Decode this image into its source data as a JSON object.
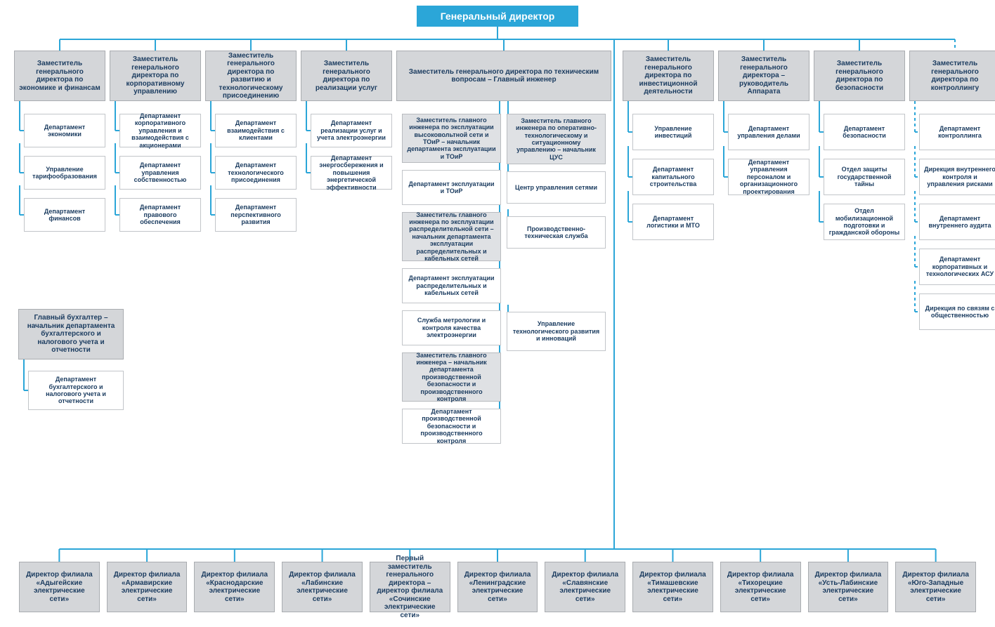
{
  "colors": {
    "root_bg": "#2ba6d8",
    "root_border": "#2ba6d8",
    "root_text": "#ffffff",
    "head_bg": "#d4d6d9",
    "head_border": "#a9acb0",
    "head_text": "#1a3b5f",
    "sub_bg": "#dfe1e4",
    "sub_border": "#b8bbbf",
    "sub_text": "#1a3b5f",
    "dept_bg": "#ffffff",
    "dept_border": "#c2c5c9",
    "dept_text": "#1a3b5f",
    "line": "#2ba6d8",
    "line_dotted": "#2ba6d8",
    "body_bg": "#ffffff"
  },
  "fontsize": {
    "root": 14,
    "head": 10,
    "dept": 9,
    "branch": 10
  },
  "line_width": 2,
  "root": {
    "label": "Генеральный директор"
  },
  "columns": [
    {
      "head": "Заместитель генерального директора по экономике и финансам",
      "depts": [
        "Департамент экономики",
        "Управление тарифообразования",
        "Департамент финансов"
      ]
    },
    {
      "head": "Заместитель генерального директора по корпоративному управлению",
      "depts": [
        "Департамент корпоративного управления и взаимодействия с акционерами",
        "Департамент управления собственностью",
        "Департамент правового обеспечения"
      ]
    },
    {
      "head": "Заместитель генерального директора по развитию и технологическому присоединению",
      "depts": [
        "Департамент взаимодействия с клиентами",
        "Департамент технологического присоединения",
        "Департамент перспективного развития"
      ]
    },
    {
      "head": "Заместитель генерального директора по реализации услуг",
      "depts": [
        "Департамент реализации услуг и учета электроэнергии",
        "Департамент энергосбережения и повышения энергетической эффективности"
      ]
    }
  ],
  "chief_engineer": {
    "head": "Заместитель генерального директора по техническим вопросам – Главный инженер",
    "left_col": [
      {
        "type": "sub",
        "label": "Заместитель главного инженера по эксплуатации высоковольтной сети и ТОиР – начальник департамента эксплуатации и ТОиР"
      },
      {
        "type": "dept",
        "label": "Департамент эксплуатации и ТОиР"
      },
      {
        "type": "sub",
        "label": "Заместитель главного инженера по эксплуатации распределительной сети – начальник департамента эксплуатации распределительных и кабельных сетей"
      },
      {
        "type": "dept",
        "label": "Департамент эксплуатации распределительных и кабельных сетей"
      },
      {
        "type": "dept",
        "label": "Служба метрологии и контроля качества электроэнергии"
      },
      {
        "type": "sub",
        "label": "Заместитель главного инженера – начальник департамента производственной безопасности и производственного контроля"
      },
      {
        "type": "dept",
        "label": "Департамент производственной безопасности и производственного контроля"
      }
    ],
    "right_col": [
      {
        "type": "sub",
        "label": "Заместитель главного инженера по оперативно-технологическому и ситуационному управлению – начальник ЦУС"
      },
      {
        "type": "dept",
        "label": "Центр управления сетями"
      },
      {
        "type": "dept",
        "label": "Производственно-техническая служба"
      },
      {
        "type": "dept",
        "label": "Управление технологического развития и инноваций"
      }
    ]
  },
  "right_columns": [
    {
      "head": "Заместитель генерального директора по инвестиционной деятельности",
      "depts": [
        "Управление инвестиций",
        "Департамент капитального строительства",
        "Департамент логистики и МТО"
      ]
    },
    {
      "head": "Заместитель генерального директора – руководитель Аппарата",
      "depts": [
        "Департамент управления делами",
        "Департамент управления персоналом и организационного проектирования"
      ]
    },
    {
      "head": "Заместитель генерального директора по безопасности",
      "depts": [
        "Департамент безопасности",
        "Отдел защиты государственной тайны",
        "Отдел мобилизационной подготовки и гражданской обороны"
      ]
    },
    {
      "head": "Заместитель генерального директора по контроллингу",
      "dotted": true,
      "depts": [
        "Департамент контроллинга",
        "Дирекция внутреннего контроля и управления рисками",
        "Департамент внутреннего аудита",
        "Департамент корпоративных и технологических АСУ",
        "Дирекция по связям с общественностью"
      ]
    }
  ],
  "accountant": {
    "head": "Главный бухгалтер – начальник департамента бухгалтерского и налогового учета и отчетности",
    "dept": "Департамент бухгалтерского и налогового учета и отчетности"
  },
  "branches": [
    "Директор филиала «Адыгейские электрические сети»",
    "Директор филиала «Армавирские электрические сети»",
    "Директор филиала «Краснодарские электрические сети»",
    "Директор филиала «Лабинские электрические сети»",
    "Первый заместитель генерального директора – директор филиала «Сочинские электрические сети»",
    "Директор филиала «Ленинградские электрические сети»",
    "Директор филиала «Славянские электрические сети»",
    "Директор филиала «Тимашевские электрические сети»",
    "Директор филиала «Тихорецкие электрические сети»",
    "Директор филиала «Усть-Лабинские электрические сети»",
    "Директор филиала «Юго-Западные электрические сети»"
  ]
}
